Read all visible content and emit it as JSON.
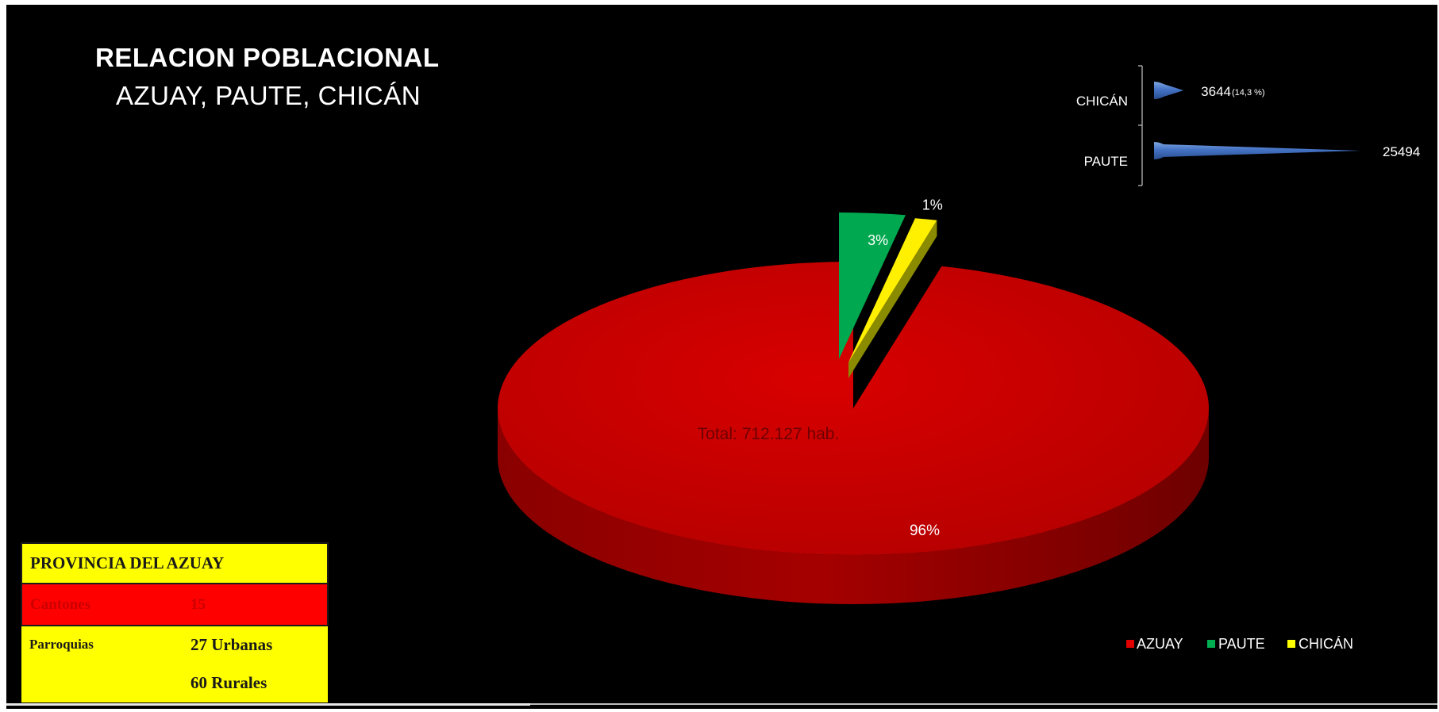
{
  "chart_data": [
    {
      "type": "pie",
      "title": "RELACION POBLACIONAL",
      "subtitle": "AZUAY, PAUTE, CHICÁN",
      "categories": [
        "AZUAY",
        "PAUTE",
        "CHICÁN"
      ],
      "values": [
        96,
        3,
        1
      ],
      "data_labels": [
        "96%",
        "3%",
        "1%"
      ],
      "annotation": "Total: 712.127 hab.",
      "legend": {
        "placement": "bottom-right",
        "entries": [
          "AZUAY",
          "PAUTE",
          "CHICÁN"
        ]
      },
      "colors": [
        "#c00000",
        "#00b050",
        "#ffff00"
      ]
    },
    {
      "type": "bar",
      "orientation": "horizontal",
      "categories": [
        "PAUTE",
        "CHICÁN"
      ],
      "values": [
        25494,
        3644
      ],
      "data_labels": [
        "25494",
        "3644"
      ],
      "annotation": "(14,3 %)",
      "color": "#4472c4"
    }
  ],
  "info_table": {
    "header": "PROVINCIA DEL AZUAY",
    "rows": [
      {
        "label": "Cantones",
        "value": "15"
      },
      {
        "label": "Parroquias",
        "value": "27 Urbanas"
      },
      {
        "label": "",
        "value": "60 Rurales"
      }
    ]
  }
}
